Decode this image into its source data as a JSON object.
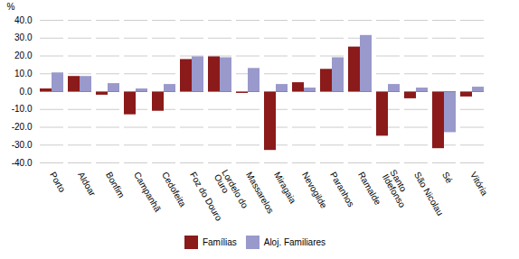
{
  "chart_data": {
    "type": "bar",
    "categories": [
      "Porto",
      "Aldoar",
      "Bonfim",
      "Campanhã",
      "Cedofeita",
      "Foz do Douro",
      "Lordelo do\nOuro",
      "Massarelos",
      "Miragaia",
      "Nevogilde",
      "Paranhos",
      "Ramalde",
      "Santo\nIldefonso",
      "São Nicolau",
      "Sé",
      "Vitória"
    ],
    "series": [
      {
        "name": "Famílias",
        "color": "#8B1A1A",
        "values": [
          1.5,
          8.5,
          -2.0,
          -13.0,
          -11.0,
          18.0,
          19.5,
          -1.0,
          -33.0,
          5.0,
          12.5,
          25.0,
          -25.0,
          -4.0,
          -32.0,
          -3.0
        ]
      },
      {
        "name": "Aloj. Familiares",
        "color": "#9999CC",
        "values": [
          10.5,
          8.5,
          4.5,
          1.5,
          4.0,
          19.5,
          19.0,
          13.0,
          4.0,
          2.0,
          19.0,
          31.5,
          4.0,
          2.0,
          -23.0,
          2.5
        ]
      }
    ],
    "ylabel": "%",
    "ylim": [
      -40.0,
      40.0
    ],
    "yticks": [
      {
        "value": -40,
        "label": "-40.0"
      },
      {
        "value": -30,
        "label": "-30.0"
      },
      {
        "value": -20,
        "label": "-20.0"
      },
      {
        "value": -10,
        "label": "-10.0"
      },
      {
        "value": 0,
        "label": "0.0"
      },
      {
        "value": 10,
        "label": "10.0"
      },
      {
        "value": 20,
        "label": "20.0"
      },
      {
        "value": 30,
        "label": "30.0"
      },
      {
        "value": 40,
        "label": "40.0"
      }
    ],
    "grid": true,
    "legend": "bottom"
  }
}
